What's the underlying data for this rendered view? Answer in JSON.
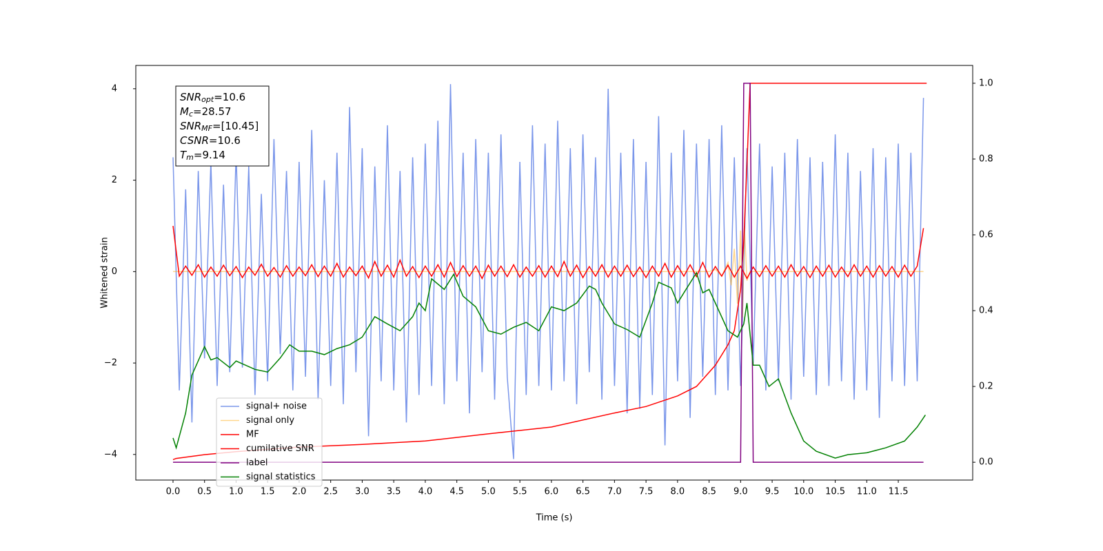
{
  "chart_data": {
    "type": "line",
    "xlabel": "Time (s)",
    "ylabel": "Whitened strain",
    "xlim": [
      -0.59,
      12.68
    ],
    "ylim": [
      -4.56,
      4.51
    ],
    "y2lim": [
      -0.047,
      1.047
    ],
    "xticks": [
      {
        "value": 0,
        "label": "0.0"
      },
      0.5,
      {
        "value": 1,
        "label": "1.0"
      },
      1.5,
      {
        "value": 2,
        "label": "2.0"
      },
      2.5,
      {
        "value": 3,
        "label": "3.0"
      },
      3.5,
      {
        "value": 4,
        "label": "4.0"
      },
      4.5,
      {
        "value": 5,
        "label": "5.0"
      },
      5.5,
      {
        "value": 6,
        "label": "6.0"
      },
      6.5,
      {
        "value": 7,
        "label": "7.0"
      },
      7.5,
      {
        "value": 8,
        "label": "8.0"
      },
      8.5,
      {
        "value": 9,
        "label": "9.0"
      },
      9.5,
      {
        "value": 10,
        "label": "10.0"
      },
      10.5,
      {
        "value": 11,
        "label": "11.0"
      },
      11.5
    ],
    "yticks": [
      {
        "value": -4,
        "label": "−4"
      },
      {
        "value": -2,
        "label": "−2"
      },
      0,
      2,
      4
    ],
    "y2ticks": [
      {
        "value": 0,
        "label": "0.0"
      },
      0.2,
      0.4,
      0.6,
      0.8,
      {
        "value": 1,
        "label": "1.0"
      }
    ],
    "x": [
      0,
      0.1,
      0.2,
      0.3,
      0.4,
      0.5,
      0.6,
      0.7,
      0.8,
      0.9,
      1,
      1.1,
      1.2,
      1.3,
      1.4,
      1.5,
      1.6,
      1.7,
      1.8,
      1.9,
      2,
      2.1,
      2.2,
      2.3,
      2.4,
      2.5,
      2.6,
      2.7,
      2.8,
      2.9,
      3,
      3.1,
      3.2,
      3.3,
      3.4,
      3.5,
      3.6,
      3.7,
      3.8,
      3.9,
      4,
      4.1,
      4.2,
      4.3,
      4.4,
      4.5,
      4.6,
      4.7,
      4.8,
      4.9,
      5,
      5.1,
      5.2,
      5.3,
      5.4,
      5.5,
      5.6,
      5.7,
      5.8,
      5.9,
      6,
      6.1,
      6.2,
      6.3,
      6.4,
      6.5,
      6.6,
      6.7,
      6.8,
      6.9,
      7,
      7.1,
      7.2,
      7.3,
      7.4,
      7.5,
      7.6,
      7.7,
      7.8,
      7.9,
      8,
      8.1,
      8.2,
      8.3,
      8.4,
      8.5,
      8.6,
      8.7,
      8.8,
      8.9,
      9,
      9.1,
      9.2,
      9.3,
      9.4,
      9.5,
      9.6,
      9.7,
      9.8,
      9.9,
      10,
      10.1,
      10.2,
      10.3,
      10.4,
      10.5,
      10.6,
      10.7,
      10.8,
      10.9,
      11,
      11.1,
      11.2,
      11.3,
      11.4,
      11.5,
      11.6,
      11.7,
      11.8,
      11.9
    ],
    "series": [
      {
        "name": "signal+ noise",
        "color": "#4169e1",
        "alpha": 0.7,
        "values": [
          2.5,
          -2.6,
          1.8,
          -3.3,
          2.2,
          -1.9,
          2.4,
          -2.5,
          1.9,
          -2.2,
          2.6,
          -2.1,
          2.3,
          -2.7,
          1.7,
          -2.4,
          2.9,
          -1.8,
          2.2,
          -2.6,
          2.4,
          -2.3,
          3.1,
          -2.8,
          2.0,
          -2.5,
          2.6,
          -2.9,
          3.6,
          -2.2,
          2.7,
          -3.6,
          2.3,
          -2.4,
          3.2,
          -2.6,
          2.2,
          -3.3,
          2.5,
          -2.7,
          2.8,
          -2.5,
          3.3,
          -2.9,
          4.1,
          -2.4,
          2.6,
          -3.1,
          2.9,
          -2.2,
          2.6,
          -2.8,
          3.0,
          -2.3,
          -4.1,
          2.4,
          -2.7,
          3.2,
          -2.5,
          2.8,
          -2.6,
          3.3,
          -2.4,
          2.7,
          -2.9,
          3.0,
          -2.2,
          2.5,
          -2.8,
          4.0,
          -2.5,
          2.6,
          -3.1,
          2.9,
          -3.0,
          2.4,
          -2.7,
          3.4,
          -3.8,
          2.6,
          -2.4,
          3.1,
          -3.2,
          2.8,
          -2.3,
          2.9,
          -2.7,
          3.2,
          -2.6,
          2.5,
          -2.5,
          2.7,
          -2.0,
          2.8,
          -2.6,
          2.3,
          -2.4,
          2.6,
          -2.8,
          2.9,
          -2.3,
          2.5,
          -2.7,
          2.4,
          -2.5,
          3.0,
          -2.4,
          2.6,
          -2.8,
          2.2,
          -2.6,
          2.7,
          -3.2,
          2.5,
          -2.4,
          2.8,
          -2.5,
          2.6,
          -2.4,
          3.8
        ]
      },
      {
        "name": "signal only",
        "color": "#ffa500",
        "alpha": 0.45,
        "x": [
          0,
          8.5,
          8.6,
          8.7,
          8.8,
          8.85,
          8.9,
          8.95,
          9.0,
          9.03,
          9.06,
          9.1,
          9.15,
          11.9
        ],
        "values": [
          0,
          0,
          0.05,
          -0.1,
          0.2,
          -0.3,
          0.5,
          -0.7,
          0.9,
          -1.0,
          1.0,
          -0.2,
          0,
          0
        ]
      },
      {
        "name": "MF",
        "color": "#ff0000",
        "alpha": 1,
        "values": [
          1.0,
          -0.1,
          0.12,
          -0.08,
          0.15,
          -0.12,
          0.1,
          -0.1,
          0.14,
          -0.09,
          0.11,
          -0.13,
          0.1,
          -0.08,
          0.16,
          -0.1,
          0.09,
          -0.12,
          0.13,
          -0.1,
          0.1,
          -0.09,
          0.15,
          -0.11,
          0.12,
          -0.1,
          0.18,
          -0.12,
          0.1,
          -0.09,
          0.12,
          -0.14,
          0.22,
          -0.1,
          0.14,
          -0.12,
          0.25,
          -0.1,
          0.11,
          -0.13,
          0.12,
          -0.1,
          0.15,
          -0.12,
          0.2,
          -0.11,
          0.13,
          -0.1,
          0.12,
          -0.15,
          0.14,
          -0.1,
          0.12,
          -0.11,
          0.15,
          -0.12,
          0.1,
          -0.1,
          0.13,
          -0.12,
          0.12,
          -0.11,
          0.22,
          -0.1,
          0.14,
          -0.13,
          0.11,
          -0.1,
          0.15,
          -0.12,
          0.12,
          -0.1,
          0.14,
          -0.11,
          0.1,
          -0.13,
          0.12,
          -0.1,
          0.18,
          -0.12,
          0.13,
          -0.1,
          0.15,
          -0.11,
          0.2,
          -0.12,
          0.11,
          -0.1,
          0.14,
          -0.12,
          0.12,
          -0.15,
          0.1,
          -0.11,
          0.13,
          -0.1,
          0.12,
          -0.12,
          0.15,
          -0.1,
          0.11,
          -0.13,
          0.12,
          -0.1,
          0.14,
          -0.12,
          0.1,
          -0.11,
          0.15,
          -0.1,
          0.12,
          -0.12,
          0.13,
          -0.1,
          0.11,
          -0.12,
          0.14,
          -0.1,
          0.12,
          0.95
        ]
      },
      {
        "name": "cumilative SNR",
        "color": "#ff0000",
        "alpha": 1,
        "axis": "y2",
        "x": [
          0,
          0.05,
          0.5,
          1,
          2,
          3,
          4,
          5,
          6,
          7,
          7.5,
          8,
          8.3,
          8.6,
          8.8,
          8.9,
          9.0,
          9.05,
          9.1,
          9.15,
          9.5,
          11.95
        ],
        "values": [
          0.007,
          0.01,
          0.02,
          0.028,
          0.04,
          0.047,
          0.056,
          0.075,
          0.093,
          0.13,
          0.147,
          0.175,
          0.2,
          0.256,
          0.31,
          0.347,
          0.456,
          0.584,
          0.784,
          1.0,
          1.0,
          1.0
        ]
      },
      {
        "name": "label",
        "color": "#800080",
        "alpha": 1,
        "axis": "y2",
        "x": [
          0,
          9.0,
          9.05,
          9.15,
          9.2,
          11.9
        ],
        "values": [
          0,
          0,
          1,
          1,
          0,
          0
        ]
      },
      {
        "name": "signal statistics",
        "color": "#008000",
        "alpha": 1,
        "axis": "y2",
        "x": [
          0,
          0.05,
          0.2,
          0.3,
          0.5,
          0.6,
          0.7,
          0.9,
          1.0,
          1.3,
          1.5,
          1.7,
          1.85,
          2.0,
          2.2,
          2.4,
          2.6,
          2.8,
          3.0,
          3.2,
          3.4,
          3.6,
          3.8,
          3.9,
          4.0,
          4.1,
          4.3,
          4.45,
          4.6,
          4.8,
          5.0,
          5.2,
          5.4,
          5.6,
          5.8,
          6.0,
          6.2,
          6.4,
          6.6,
          6.7,
          6.8,
          7.0,
          7.2,
          7.4,
          7.6,
          7.7,
          7.9,
          8.0,
          8.1,
          8.3,
          8.4,
          8.5,
          8.6,
          8.8,
          8.95,
          9.05,
          9.1,
          9.2,
          9.3,
          9.45,
          9.6,
          9.8,
          10.0,
          10.2,
          10.5,
          10.7,
          11.0,
          11.3,
          11.6,
          11.8,
          11.93
        ],
        "values": [
          0.064,
          0.038,
          0.13,
          0.23,
          0.305,
          0.27,
          0.276,
          0.25,
          0.267,
          0.245,
          0.238,
          0.275,
          0.31,
          0.293,
          0.293,
          0.284,
          0.3,
          0.31,
          0.33,
          0.384,
          0.365,
          0.347,
          0.384,
          0.42,
          0.4,
          0.484,
          0.456,
          0.496,
          0.438,
          0.41,
          0.347,
          0.338,
          0.356,
          0.369,
          0.347,
          0.41,
          0.4,
          0.42,
          0.465,
          0.456,
          0.42,
          0.365,
          0.35,
          0.33,
          0.42,
          0.475,
          0.46,
          0.42,
          0.447,
          0.5,
          0.447,
          0.456,
          0.42,
          0.347,
          0.33,
          0.365,
          0.42,
          0.256,
          0.256,
          0.2,
          0.22,
          0.13,
          0.056,
          0.029,
          0.011,
          0.02,
          0.025,
          0.038,
          0.056,
          0.093,
          0.125
        ]
      }
    ],
    "annotations": [
      {
        "name": "SNR",
        "subscript": "opt",
        "text": "=10.6"
      },
      {
        "name": "M",
        "subscript": "c",
        "text": "=28.57"
      },
      {
        "name": "SNR",
        "subscript": "MF",
        "text": "=[10.45]"
      },
      {
        "name": "CSNR",
        "text": "=10.6"
      },
      {
        "name": "T",
        "subscript": "m",
        "text": "=9.14"
      }
    ]
  }
}
